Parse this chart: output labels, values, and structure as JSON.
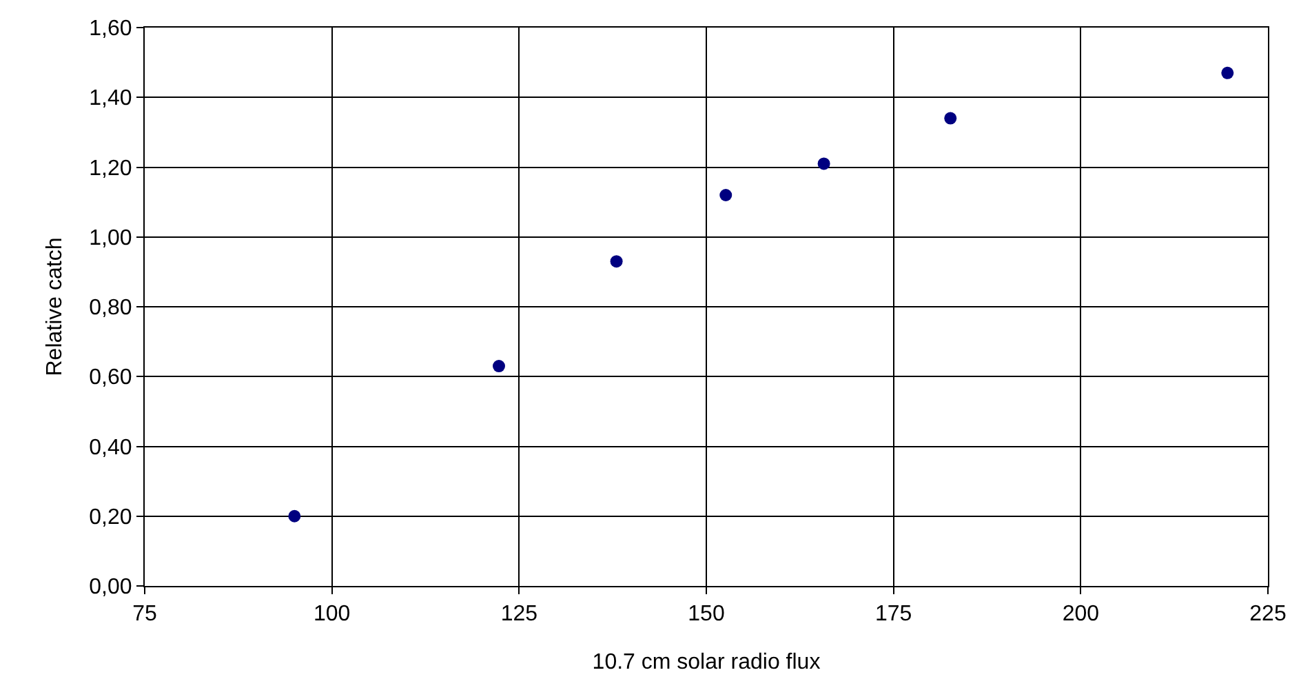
{
  "chart_data": {
    "type": "scatter",
    "xlabel": "10.7 cm solar radio flux",
    "ylabel": "Relative catch",
    "x": [
      95,
      122.3,
      138,
      152.6,
      165.7,
      182.6,
      219.6
    ],
    "series": [
      {
        "color": "#000080",
        "values": [
          0.2,
          0.63,
          0.93,
          1.12,
          1.21,
          1.34,
          1.47
        ]
      }
    ],
    "xlim": [
      75,
      225
    ],
    "xticks": [
      75,
      100,
      125,
      150,
      175,
      200,
      225
    ],
    "ylim": [
      0,
      1.6
    ],
    "yticks": [
      {
        "value": 0,
        "label": "0,00"
      },
      {
        "value": 0.2,
        "label": "0,20"
      },
      {
        "value": 0.4,
        "label": "0,40"
      },
      {
        "value": 0.6,
        "label": "0,60"
      },
      {
        "value": 0.8,
        "label": "0,80"
      },
      {
        "value": 1.0,
        "label": "1,00"
      },
      {
        "value": 1.2,
        "label": "1,20"
      },
      {
        "value": 1.4,
        "label": "1,40"
      },
      {
        "value": 1.6,
        "label": "1,60"
      }
    ],
    "grid": true,
    "marker": "circle"
  }
}
